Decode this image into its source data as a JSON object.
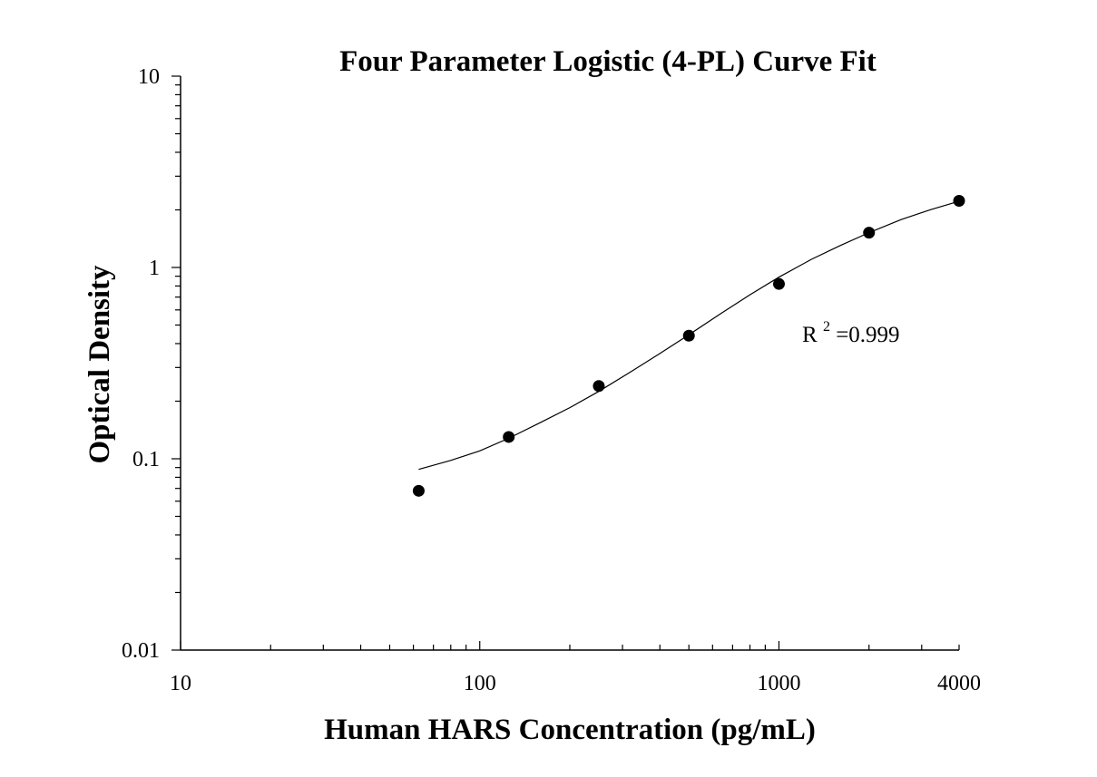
{
  "chart_data": {
    "type": "scatter",
    "title": "Four Parameter Logistic (4-PL) Curve Fit",
    "xlabel": "Human HARS Concentration (pg/mL)",
    "ylabel": "Optical Density",
    "x_scale": "log",
    "y_scale": "log",
    "xlim": [
      10,
      4000
    ],
    "ylim": [
      0.01,
      10
    ],
    "x_ticks": [
      {
        "value": 10,
        "label": "10"
      },
      {
        "value": 100,
        "label": "100"
      },
      {
        "value": 1000,
        "label": "1000"
      },
      {
        "value": 4000,
        "label": "4000"
      }
    ],
    "y_ticks": [
      {
        "value": 0.01,
        "label": "0.01"
      },
      {
        "value": 0.1,
        "label": "0.1"
      },
      {
        "value": 1,
        "label": "1"
      },
      {
        "value": 10,
        "label": "10"
      }
    ],
    "grid": false,
    "series": [
      {
        "x": [
          62.5,
          125,
          250,
          500,
          1000,
          2000,
          4000
        ],
        "y": [
          0.068,
          0.13,
          0.24,
          0.44,
          0.82,
          1.52,
          2.23
        ]
      }
    ],
    "fit_curve": {
      "model": "4PL",
      "x": [
        62.5,
        80,
        100,
        125,
        160,
        200,
        250,
        320,
        400,
        500,
        640,
        800,
        1000,
        1280,
        1600,
        2000,
        2560,
        3200,
        4000
      ],
      "y": [
        0.088,
        0.098,
        0.11,
        0.128,
        0.155,
        0.185,
        0.225,
        0.285,
        0.355,
        0.445,
        0.575,
        0.72,
        0.89,
        1.1,
        1.3,
        1.52,
        1.78,
        2.0,
        2.22
      ]
    },
    "annotation": {
      "base": "R",
      "sup": "2",
      "value": "=0.999"
    }
  }
}
